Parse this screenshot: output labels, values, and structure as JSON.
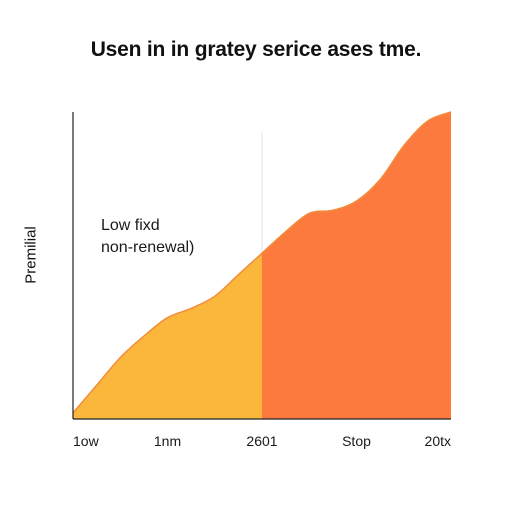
{
  "chart_data": {
    "type": "area",
    "title": "Usen in in gratey serice ases tme.",
    "xlabel": "",
    "ylabel": "Premilial",
    "categories": [
      "1ow",
      "1nm",
      "2601",
      "Stop",
      "20tx"
    ],
    "split_category": "2601",
    "ylim": [
      0,
      100
    ],
    "grid": false,
    "legend": "none",
    "x": [
      0,
      0.25,
      0.5,
      0.75,
      1.0,
      1.25,
      1.5,
      1.75,
      2.0,
      2.25,
      2.5,
      2.75,
      3.0,
      3.25,
      3.5,
      3.75,
      4.0
    ],
    "y": [
      2,
      11,
      20,
      27,
      33,
      36,
      40,
      47,
      54,
      61,
      67,
      68,
      71,
      78,
      89,
      97,
      100
    ],
    "segments": [
      {
        "from": "1ow",
        "to": "2601",
        "color": "#fbb73c"
      },
      {
        "from": "2601",
        "to": "20tx",
        "color": "#fc7a3e"
      }
    ],
    "annotations": [
      "Low fixd",
      "non-renewal)"
    ]
  },
  "colors": {
    "area_left": "#fbb73c",
    "area_right": "#fc7a3e",
    "edge": "#f28c3a",
    "axis": "#222222",
    "divider": "#e6e6e6"
  }
}
